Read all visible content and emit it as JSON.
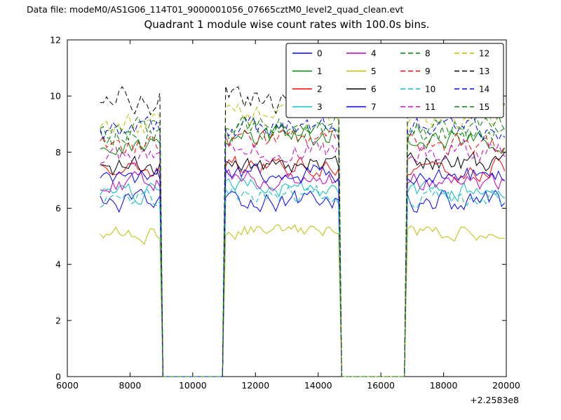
{
  "header": {
    "data_file_label": "Data file: modeM0/AS1G06_114T01_9000001056_07665cztM0_level2_quad_clean.evt"
  },
  "chart_data": {
    "type": "line",
    "title": "Quadrant 1 module wise count rates with 100.0s bins.",
    "xlabel": "",
    "ylabel": "",
    "xlim": [
      6000,
      20000
    ],
    "ylim": [
      0,
      12
    ],
    "xticks": [
      6000,
      8000,
      10000,
      12000,
      14000,
      16000,
      18000,
      20000
    ],
    "yticks": [
      0,
      2,
      4,
      6,
      8,
      10,
      12
    ],
    "x_offset_label": "+2.2583e8",
    "bin_seconds": 100,
    "x_data_start": 7050,
    "x_data_end": 20000,
    "on_intervals": [
      [
        7050,
        8950
      ],
      [
        11050,
        14650
      ],
      [
        16850,
        20000
      ]
    ],
    "off_value": 0,
    "segment_factors": [
      0.975,
      1.0,
      0.99
    ],
    "grid": false,
    "legend": {
      "position": "top-center",
      "columns": 4,
      "rows": 4,
      "order": "column-major"
    },
    "series": [
      {
        "name": "0",
        "color": "#0000ff",
        "linestyle": "solid",
        "mean_rate": 6.3,
        "noise": 0.22,
        "seed": 12345
      },
      {
        "name": "1",
        "color": "#008000",
        "linestyle": "solid",
        "mean_rate": 8.55,
        "noise": 0.22,
        "seed": 22318
      },
      {
        "name": "2",
        "color": "#ff0000",
        "linestyle": "solid",
        "mean_rate": 7.5,
        "noise": 0.22,
        "seed": 32291
      },
      {
        "name": "3",
        "color": "#00bfbf",
        "linestyle": "solid",
        "mean_rate": 6.7,
        "noise": 0.2,
        "seed": 42264
      },
      {
        "name": "4",
        "color": "#bf00bf",
        "linestyle": "solid",
        "mean_rate": 7.0,
        "noise": 0.2,
        "seed": 52237
      },
      {
        "name": "5",
        "color": "#bfbf00",
        "linestyle": "solid",
        "mean_rate": 5.2,
        "noise": 0.16,
        "seed": 62210
      },
      {
        "name": "6",
        "color": "#000000",
        "linestyle": "solid",
        "mean_rate": 7.65,
        "noise": 0.22,
        "seed": 72183
      },
      {
        "name": "7",
        "color": "#0000ff",
        "linestyle": "solid",
        "mean_rate": 7.25,
        "noise": 0.2,
        "seed": 82156
      },
      {
        "name": "8",
        "color": "#008000",
        "linestyle": "dashed",
        "mean_rate": 8.8,
        "noise": 0.25,
        "seed": 92129
      },
      {
        "name": "9",
        "color": "#ff0000",
        "linestyle": "dashed",
        "mean_rate": 8.35,
        "noise": 0.22,
        "seed": 102102
      },
      {
        "name": "10",
        "color": "#00bfbf",
        "linestyle": "dashed",
        "mean_rate": 6.45,
        "noise": 0.2,
        "seed": 112075
      },
      {
        "name": "11",
        "color": "#bf00bf",
        "linestyle": "dashed",
        "mean_rate": 8.05,
        "noise": 0.22,
        "seed": 122048
      },
      {
        "name": "12",
        "color": "#bfbf00",
        "linestyle": "dashed",
        "mean_rate": 9.3,
        "noise": 0.25,
        "seed": 132021
      },
      {
        "name": "13",
        "color": "#000000",
        "linestyle": "dashed",
        "mean_rate": 10.0,
        "noise": 0.3,
        "seed": 141994
      },
      {
        "name": "14",
        "color": "#0000ff",
        "linestyle": "dashed",
        "mean_rate": 8.9,
        "noise": 0.25,
        "seed": 151967
      },
      {
        "name": "15",
        "color": "#008000",
        "linestyle": "dashed",
        "mean_rate": 9.0,
        "noise": 0.25,
        "seed": 161940
      }
    ]
  }
}
